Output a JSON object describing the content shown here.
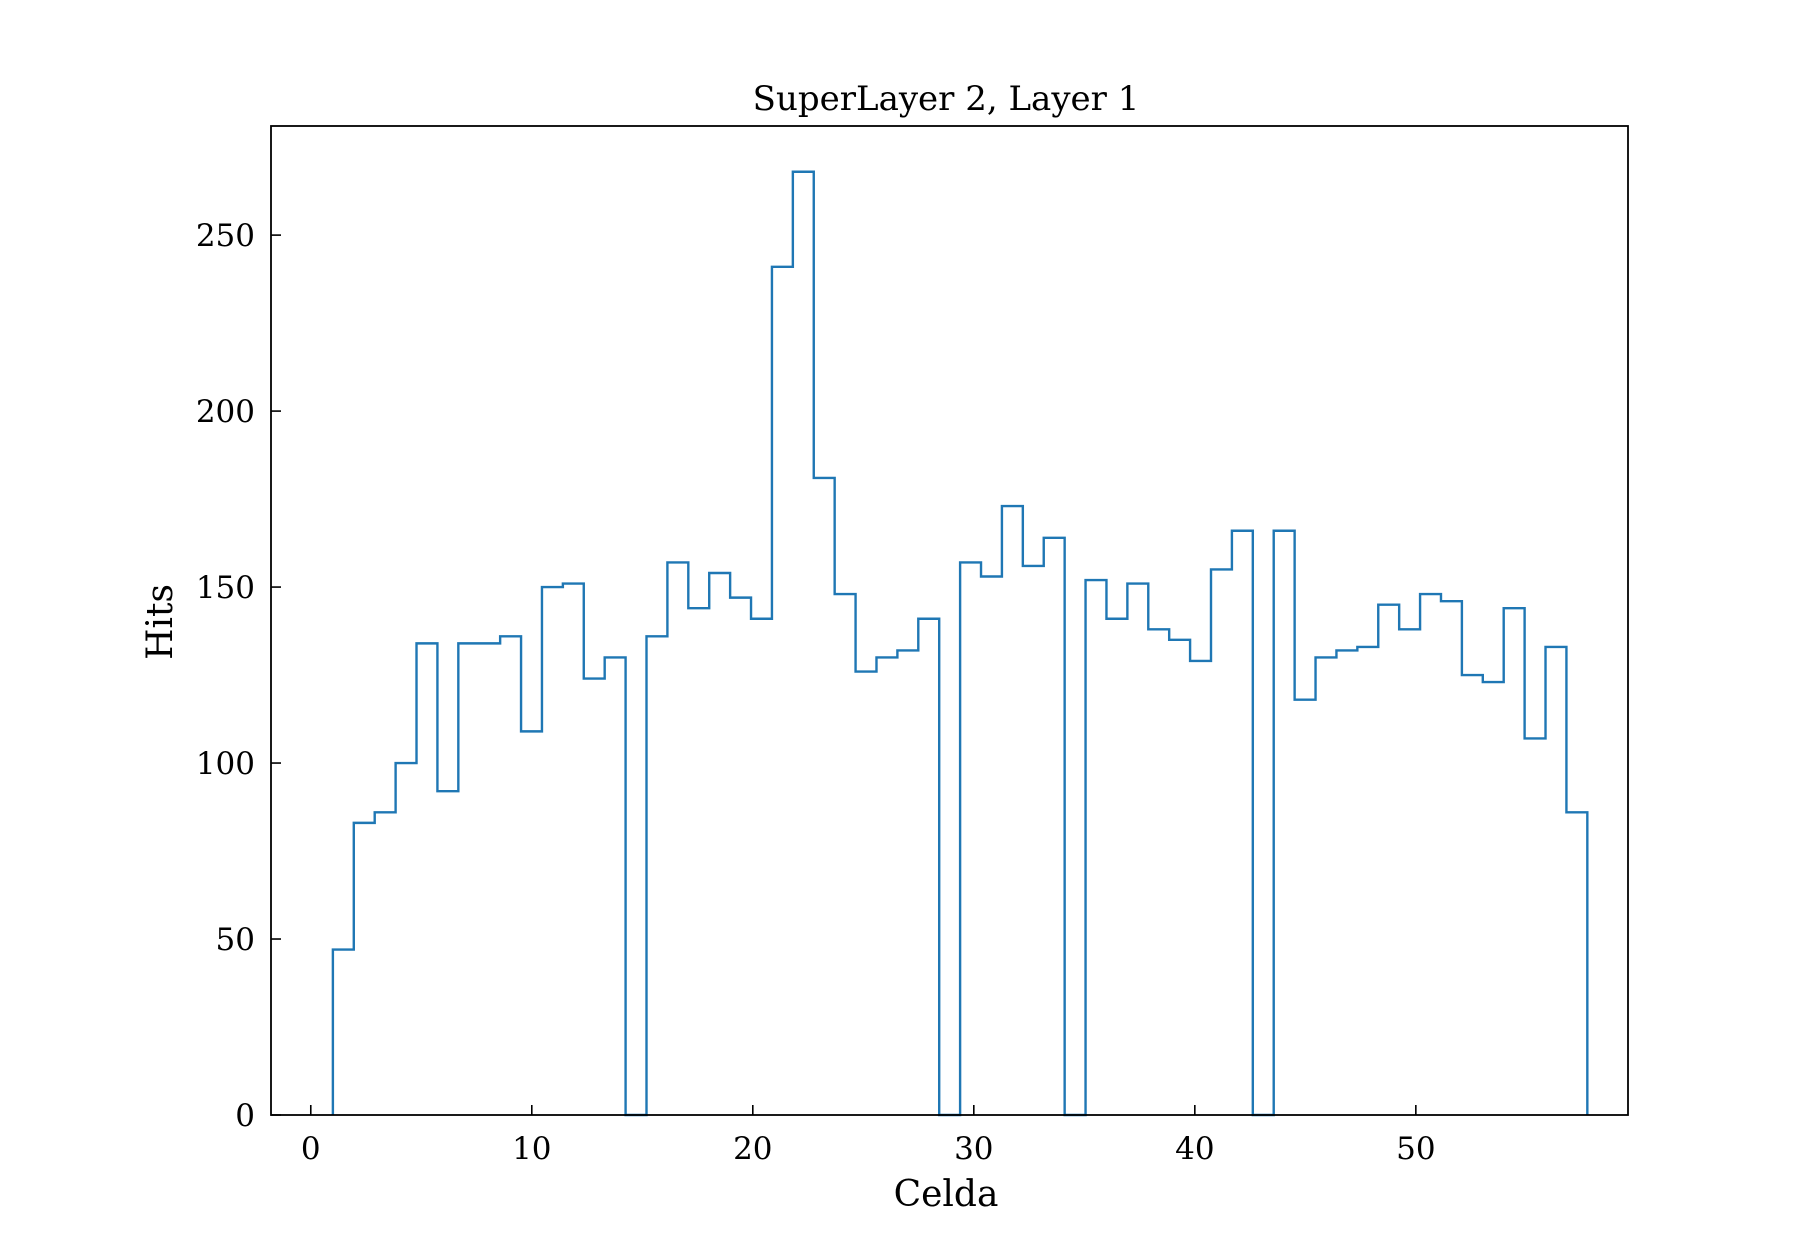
{
  "chart_data": {
    "type": "histogram",
    "title": "SuperLayer 2, Layer 1",
    "xlabel": "Celda",
    "ylabel": "Hits",
    "xlim": [
      -1.8,
      59.6
    ],
    "ylim": [
      0,
      281
    ],
    "xticks": [
      0,
      10,
      20,
      30,
      40,
      50
    ],
    "yticks": [
      0,
      50,
      100,
      150,
      200,
      250
    ],
    "grid": false,
    "color": "#1f77b4",
    "bin_edges": [
      1.0,
      1.946,
      2.892,
      3.838,
      4.784,
      5.73,
      6.676,
      7.622,
      8.568,
      9.514,
      10.46,
      11.406,
      12.352,
      13.298,
      14.244,
      15.19,
      16.136,
      17.082,
      18.028,
      18.974,
      19.92,
      20.866,
      21.812,
      22.758,
      23.704,
      24.65,
      25.596,
      26.542,
      27.488,
      28.434,
      29.38,
      30.326,
      31.272,
      32.218,
      33.164,
      34.11,
      35.056,
      36.002,
      36.948,
      37.894,
      38.84,
      39.786,
      40.732,
      41.678,
      42.624,
      43.57,
      44.516,
      45.462,
      46.408,
      47.354,
      48.3,
      49.246,
      50.192,
      51.138,
      52.084,
      53.03,
      53.976,
      54.922,
      55.868,
      56.814,
      57.76
    ],
    "counts": [
      47,
      83,
      86,
      100,
      134,
      92,
      134,
      134,
      136,
      109,
      150,
      151,
      124,
      130,
      0,
      136,
      157,
      144,
      154,
      147,
      141,
      241,
      268,
      181,
      148,
      126,
      130,
      132,
      141,
      0,
      157,
      153,
      173,
      156,
      164,
      0,
      152,
      141,
      151,
      138,
      135,
      129,
      155,
      166,
      0,
      166,
      118,
      130,
      132,
      133,
      145,
      138,
      148,
      146,
      125,
      123,
      144,
      107,
      133,
      86
    ]
  }
}
